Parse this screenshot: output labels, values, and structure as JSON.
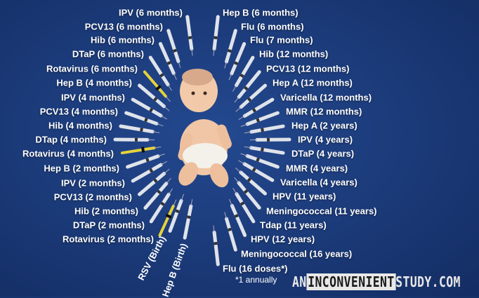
{
  "left_labels": [
    "IPV (6 months)",
    "PCV13 (6 months)",
    "Hib (6 months)",
    "DTaP (6 months)",
    "Rotavirus (6 months)",
    "Hep B (4 months)",
    "IPV (4 months)",
    "PCV13 (4 months)",
    "Hib (4 months)",
    "DTap (4 months)",
    "Rotavirus (4 months)",
    "Hep B (2 months)",
    "IPV (2 months)",
    "PCV13 (2 months)",
    "Hib (2 months)",
    "DTaP (2 months)",
    "Rotavirus (2 months)"
  ],
  "birth_labels": [
    "RSV (Birth)",
    "Hep B (Birth)"
  ],
  "right_labels": [
    "Hep B (6 months)",
    "Flu (6 months)",
    "Flu (7 months)",
    "Hib (12 months)",
    "PCV13 (12 months)",
    "Hep A (12 months)",
    "Varicella (12 months)",
    "MMR (12 months)",
    "Hep A (2 years)",
    "IPV (4 years)",
    "DTaP (4 years)",
    "MMR (4 years)",
    "Varicella (4 years)",
    "HPV (11 years)",
    "Meningococcal (11 years)",
    "Tdap (11 years)",
    "HPV (12 years)",
    "Meningococcal (16 years)",
    "Flu (16 doses*)"
  ],
  "footnote": "*1 annually",
  "logo": {
    "pre": "AN",
    "highlight": "INCONVENIENT",
    "post": "STUDY.COM"
  },
  "colors": {
    "background": "#1c3c7c",
    "text": "#ffffff",
    "oral_vaccine": "#e6d23a"
  }
}
